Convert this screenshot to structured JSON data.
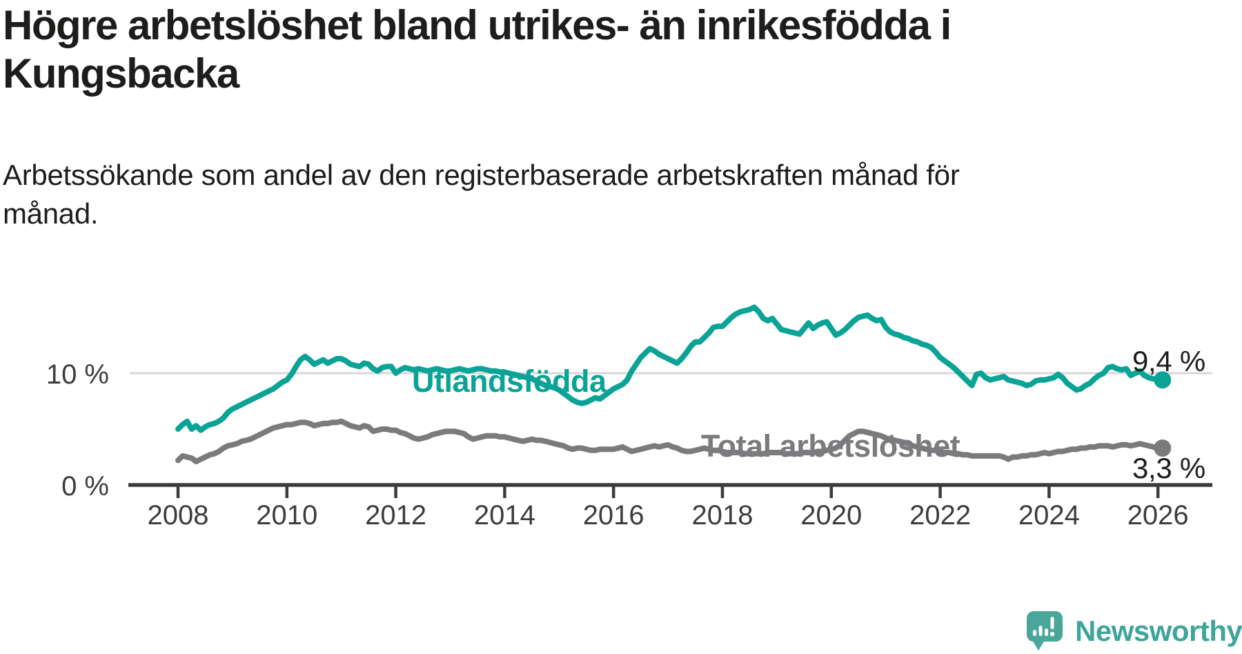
{
  "header": {
    "title": "Högre arbetslöshet bland utrikes- än inrikesfödda i Kungsbacka",
    "title_lines": [
      "Högre arbetslöshet bland utrikes- än inrikesfödda i",
      "Kungsbacka"
    ],
    "subtitle": "Arbetssökande som andel av den registerbaserade arbetskraften månad för månad.",
    "subtitle_lines": [
      "Arbetssökande som andel av den registerbaserade arbetskraften månad för",
      "månad."
    ]
  },
  "colors": {
    "accent_teal": "#0aa396",
    "series_gray": "#7b7b7e",
    "axis_line": "#3b3b3b",
    "axis_text": "#3c3c3c",
    "gridline": "#d8d8d8",
    "text": "#1d1d1b",
    "logo_teal": "#4aa69a"
  },
  "branding": {
    "logo_text": "Newsworthy",
    "logo_icon": "speech-bubble-bar-chart-icon"
  },
  "chart_data": {
    "type": "line",
    "unit": "%",
    "frequency": "monthly",
    "x_start": "2008-01",
    "x_end": "2026-02",
    "x_tick_years": [
      2008,
      2010,
      2012,
      2014,
      2016,
      2018,
      2020,
      2022,
      2024,
      2026
    ],
    "y_ticks": [
      {
        "value": 0,
        "label": "0 %"
      },
      {
        "value": 10,
        "label": "10 %"
      }
    ],
    "ylim": [
      0,
      20
    ],
    "grid": "horizontal line at 10 % only",
    "legend_position": "inline labels on lines",
    "series": [
      {
        "name": "Utlandsfödda",
        "color": "#0aa396",
        "end_value": 9.4,
        "end_label": "9,4 %",
        "values": [
          5.0,
          5.4,
          5.7,
          5.0,
          5.3,
          4.9,
          5.2,
          5.4,
          5.5,
          5.7,
          6.0,
          6.5,
          6.8,
          7.0,
          7.2,
          7.4,
          7.6,
          7.8,
          8.0,
          8.2,
          8.4,
          8.6,
          8.9,
          9.2,
          9.4,
          9.9,
          10.6,
          11.2,
          11.5,
          11.2,
          10.8,
          11.0,
          11.2,
          10.9,
          11.1,
          11.3,
          11.3,
          11.1,
          10.8,
          10.7,
          10.6,
          10.9,
          10.8,
          10.4,
          10.2,
          10.5,
          10.6,
          10.6,
          10.0,
          10.3,
          10.5,
          10.4,
          10.3,
          10.4,
          10.3,
          10.2,
          10.3,
          10.4,
          10.3,
          10.2,
          10.2,
          10.3,
          10.4,
          10.3,
          10.2,
          10.3,
          10.4,
          10.4,
          10.3,
          10.2,
          10.2,
          10.1,
          10.1,
          10.0,
          9.9,
          9.8,
          9.7,
          9.6,
          9.5,
          9.3,
          9.1,
          8.9,
          8.8,
          8.7,
          8.5,
          8.2,
          7.9,
          7.6,
          7.4,
          7.3,
          7.4,
          7.6,
          7.8,
          7.7,
          8.0,
          8.3,
          8.6,
          8.8,
          9.0,
          9.4,
          10.2,
          10.8,
          11.4,
          11.8,
          12.2,
          12.0,
          11.7,
          11.5,
          11.3,
          11.1,
          10.9,
          11.3,
          11.8,
          12.4,
          12.8,
          12.8,
          13.2,
          13.6,
          14.1,
          14.2,
          14.2,
          14.6,
          15.0,
          15.3,
          15.5,
          15.6,
          15.7,
          15.9,
          15.5,
          14.9,
          14.7,
          14.9,
          14.4,
          13.9,
          13.8,
          13.7,
          13.6,
          13.5,
          14.0,
          14.5,
          14.0,
          14.3,
          14.5,
          14.6,
          14.0,
          13.4,
          13.6,
          13.9,
          14.3,
          14.7,
          15.0,
          15.1,
          15.2,
          14.9,
          14.7,
          14.8,
          14.1,
          13.7,
          13.5,
          13.4,
          13.2,
          13.1,
          12.9,
          12.8,
          12.6,
          12.5,
          12.3,
          11.9,
          11.4,
          11.1,
          10.8,
          10.5,
          10.1,
          9.7,
          9.3,
          8.9,
          9.9,
          10.0,
          9.6,
          9.4,
          9.5,
          9.6,
          9.7,
          9.4,
          9.3,
          9.2,
          9.1,
          8.9,
          9.0,
          9.3,
          9.4,
          9.4,
          9.5,
          9.6,
          9.9,
          9.6,
          9.1,
          8.8,
          8.5,
          8.6,
          8.9,
          9.1,
          9.5,
          9.8,
          10.0,
          10.5,
          10.6,
          10.4,
          10.3,
          10.4,
          9.8,
          10.0,
          10.2,
          9.8,
          9.6,
          9.5,
          9.4,
          9.4
        ]
      },
      {
        "name": "Total arbetslöshet",
        "color": "#7b7b7e",
        "end_value": 3.3,
        "end_label": "3,3 %",
        "values": [
          2.2,
          2.6,
          2.5,
          2.4,
          2.1,
          2.3,
          2.5,
          2.7,
          2.8,
          3.0,
          3.3,
          3.5,
          3.6,
          3.7,
          3.9,
          4.0,
          4.1,
          4.3,
          4.5,
          4.7,
          4.9,
          5.1,
          5.2,
          5.3,
          5.4,
          5.4,
          5.5,
          5.6,
          5.6,
          5.5,
          5.3,
          5.4,
          5.5,
          5.5,
          5.6,
          5.6,
          5.7,
          5.5,
          5.3,
          5.2,
          5.1,
          5.3,
          5.2,
          4.8,
          4.9,
          5.0,
          5.0,
          4.9,
          4.9,
          4.7,
          4.6,
          4.4,
          4.2,
          4.1,
          4.2,
          4.3,
          4.5,
          4.6,
          4.7,
          4.8,
          4.8,
          4.8,
          4.7,
          4.6,
          4.3,
          4.1,
          4.2,
          4.3,
          4.4,
          4.4,
          4.4,
          4.3,
          4.3,
          4.2,
          4.1,
          4.0,
          3.9,
          4.0,
          4.1,
          4.0,
          4.0,
          3.9,
          3.8,
          3.7,
          3.6,
          3.5,
          3.3,
          3.2,
          3.3,
          3.3,
          3.2,
          3.1,
          3.1,
          3.2,
          3.2,
          3.2,
          3.2,
          3.3,
          3.4,
          3.2,
          3.0,
          3.1,
          3.2,
          3.3,
          3.4,
          3.5,
          3.4,
          3.5,
          3.6,
          3.4,
          3.3,
          3.1,
          3.0,
          3.0,
          3.1,
          3.2,
          3.3,
          3.2,
          3.1,
          3.1,
          3.0,
          2.9,
          2.9,
          2.9,
          2.9,
          2.8,
          2.8,
          2.8,
          2.8,
          2.8,
          2.9,
          2.9,
          2.9,
          2.9,
          2.8,
          2.8,
          2.8,
          2.8,
          2.9,
          2.9,
          2.9,
          3.0,
          3.0,
          3.1,
          3.2,
          3.3,
          3.6,
          4.0,
          4.4,
          4.6,
          4.8,
          4.8,
          4.7,
          4.6,
          4.5,
          4.4,
          4.2,
          4.1,
          4.0,
          3.9,
          3.8,
          3.7,
          3.5,
          3.4,
          3.3,
          3.2,
          3.1,
          3.1,
          3.0,
          2.9,
          2.9,
          2.8,
          2.8,
          2.7,
          2.7,
          2.6,
          2.6,
          2.6,
          2.6,
          2.6,
          2.6,
          2.6,
          2.5,
          2.3,
          2.5,
          2.5,
          2.6,
          2.6,
          2.7,
          2.7,
          2.8,
          2.9,
          2.8,
          2.9,
          3.0,
          3.0,
          3.1,
          3.2,
          3.2,
          3.3,
          3.3,
          3.4,
          3.4,
          3.5,
          3.5,
          3.5,
          3.4,
          3.5,
          3.6,
          3.6,
          3.5,
          3.6,
          3.7,
          3.6,
          3.5,
          3.4,
          3.3,
          3.3
        ]
      }
    ]
  }
}
